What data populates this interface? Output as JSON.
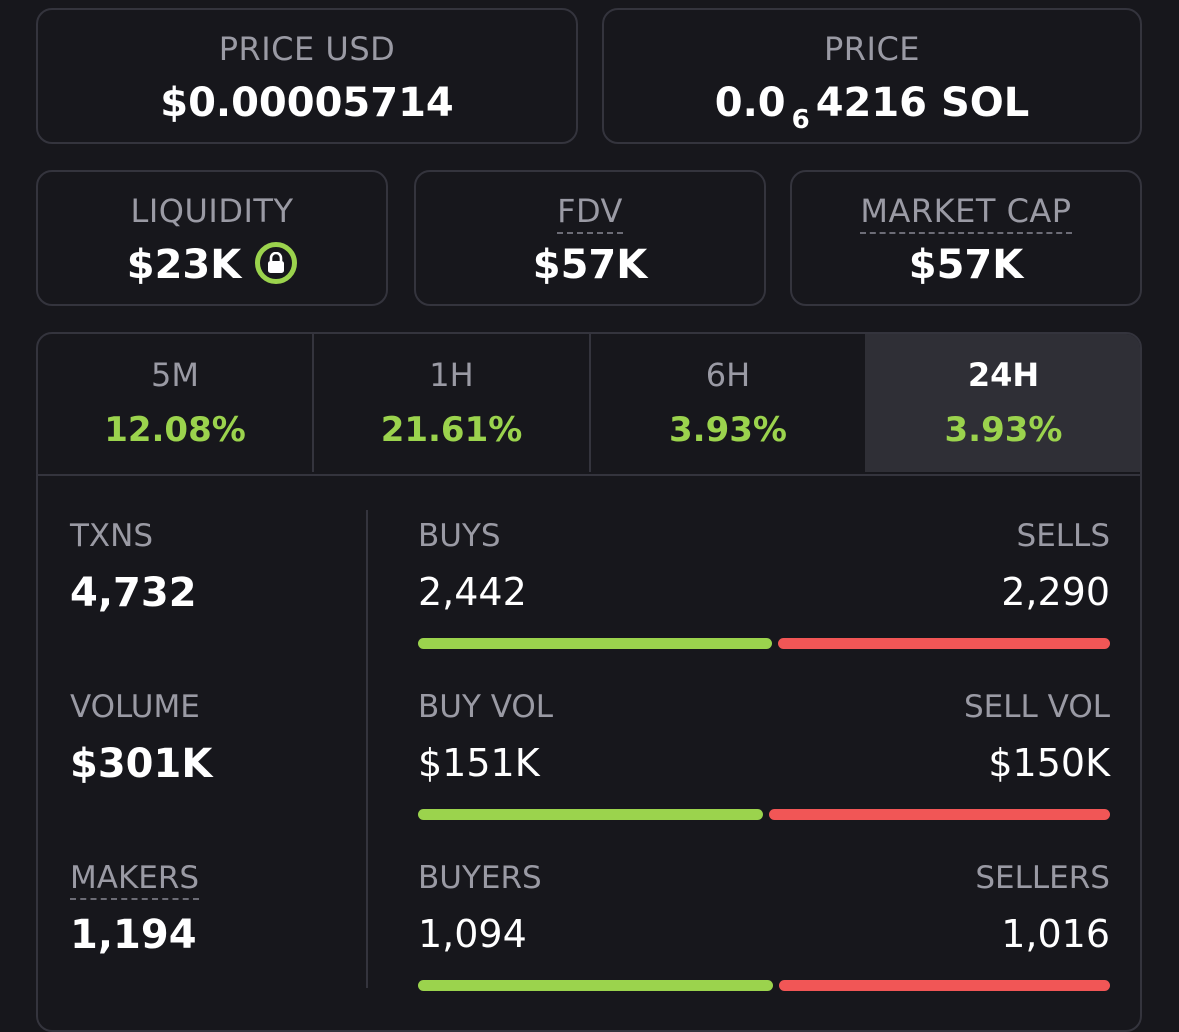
{
  "price_usd": {
    "label": "PRICE USD",
    "value": "$0.00005714"
  },
  "price_native": {
    "label": "PRICE",
    "lead": "0.0",
    "zeros": "6",
    "digits": "4216",
    "unit": "SOL"
  },
  "liquidity": {
    "label": "LIQUIDITY",
    "value": "$23K",
    "lock_icon": "lock-icon"
  },
  "fdv": {
    "label": "FDV",
    "value": "$57K"
  },
  "market_cap": {
    "label": "MARKET CAP",
    "value": "$57K"
  },
  "tabs": [
    {
      "label": "5M",
      "change": "12.08%",
      "active": false
    },
    {
      "label": "1H",
      "change": "21.61%",
      "active": false
    },
    {
      "label": "6H",
      "change": "3.93%",
      "active": false
    },
    {
      "label": "24H",
      "change": "3.93%",
      "active": true
    }
  ],
  "stats": {
    "txns": {
      "label": "TXNS",
      "value": "4,732"
    },
    "volume": {
      "label": "VOLUME",
      "value": "$301K"
    },
    "makers": {
      "label": "MAKERS",
      "value": "1,194"
    }
  },
  "pairs": {
    "txns": {
      "buy_label": "BUYS",
      "buy_value": "2,442",
      "sell_label": "SELLS",
      "sell_value": "2,290",
      "buy_ratio": 0.516
    },
    "volume": {
      "buy_label": "BUY VOL",
      "buy_value": "$151K",
      "sell_label": "SELL VOL",
      "sell_value": "$150K",
      "buy_ratio": 0.503
    },
    "makers": {
      "buy_label": "BUYERS",
      "buy_value": "1,094",
      "sell_label": "SELLERS",
      "sell_value": "1,016",
      "buy_ratio": 0.518
    }
  },
  "colors": {
    "green": "#9bd34d",
    "red": "#f15656",
    "background": "#17171c",
    "border": "#34343d"
  }
}
